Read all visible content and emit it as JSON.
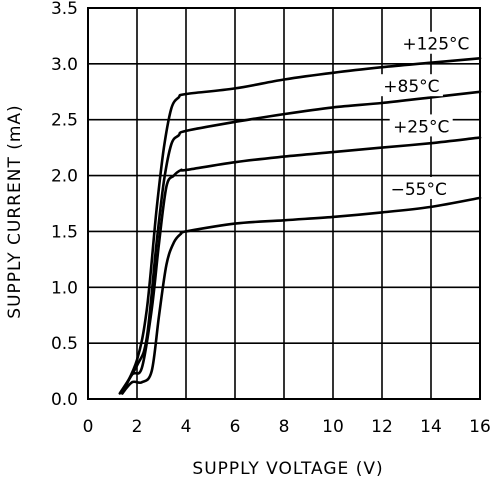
{
  "chart_data": {
    "type": "line",
    "title": "",
    "xlabel": "SUPPLY VOLTAGE (V)",
    "ylabel": "SUPPLY CURRENT (mA)",
    "xlim": [
      0,
      16
    ],
    "ylim": [
      0,
      3.5
    ],
    "x_ticks": [
      0,
      2,
      4,
      6,
      8,
      10,
      12,
      14,
      16
    ],
    "y_ticks": [
      0.0,
      0.5,
      1.0,
      1.5,
      2.0,
      2.5,
      3.0,
      3.5
    ],
    "x_tick_labels": [
      "0",
      "2",
      "4",
      "6",
      "8",
      "10",
      "12",
      "14",
      "16"
    ],
    "y_tick_labels": [
      "0.0",
      "0.5",
      "1.0",
      "1.5",
      "2.0",
      "2.5",
      "3.0",
      "3.5"
    ],
    "grid": true,
    "series": [
      {
        "name": "+125°C",
        "x": [
          1.4,
          2.0,
          2.4,
          2.8,
          3.1,
          3.4,
          3.7,
          4.0,
          6.0,
          8.0,
          10.0,
          12.0,
          14.0,
          16.0
        ],
        "y": [
          0.06,
          0.35,
          0.8,
          1.7,
          2.25,
          2.6,
          2.7,
          2.73,
          2.78,
          2.86,
          2.92,
          2.97,
          3.01,
          3.05
        ]
      },
      {
        "name": "+85°C",
        "x": [
          1.3,
          2.0,
          2.4,
          2.8,
          3.1,
          3.4,
          3.7,
          4.0,
          6.0,
          8.0,
          10.0,
          12.0,
          14.0,
          16.0
        ],
        "y": [
          0.05,
          0.3,
          0.55,
          1.4,
          1.95,
          2.28,
          2.36,
          2.4,
          2.48,
          2.55,
          2.61,
          2.65,
          2.7,
          2.75
        ]
      },
      {
        "name": "+25°C",
        "x": [
          1.4,
          1.8,
          2.2,
          2.6,
          2.9,
          3.2,
          3.5,
          3.8,
          4.0,
          6.0,
          8.0,
          10.0,
          12.0,
          14.0,
          16.0
        ],
        "y": [
          0.05,
          0.22,
          0.28,
          0.8,
          1.4,
          1.9,
          2.0,
          2.05,
          2.05,
          2.12,
          2.17,
          2.21,
          2.25,
          2.29,
          2.34
        ]
      },
      {
        "name": "-55°C",
        "x": [
          1.4,
          1.8,
          2.2,
          2.6,
          2.9,
          3.2,
          3.5,
          3.8,
          4.0,
          6.0,
          8.0,
          10.0,
          12.0,
          14.0,
          16.0
        ],
        "y": [
          0.05,
          0.15,
          0.15,
          0.25,
          0.75,
          1.2,
          1.4,
          1.48,
          1.5,
          1.57,
          1.6,
          1.63,
          1.67,
          1.72,
          1.8
        ]
      }
    ],
    "series_labels": [
      {
        "text": "+125°C",
        "x": 14.2,
        "y": 3.18
      },
      {
        "text": "+85°C",
        "x": 13.2,
        "y": 2.8
      },
      {
        "text": "+25°C",
        "x": 13.6,
        "y": 2.44
      },
      {
        "text": "−55°C",
        "x": 13.5,
        "y": 1.88
      }
    ]
  }
}
